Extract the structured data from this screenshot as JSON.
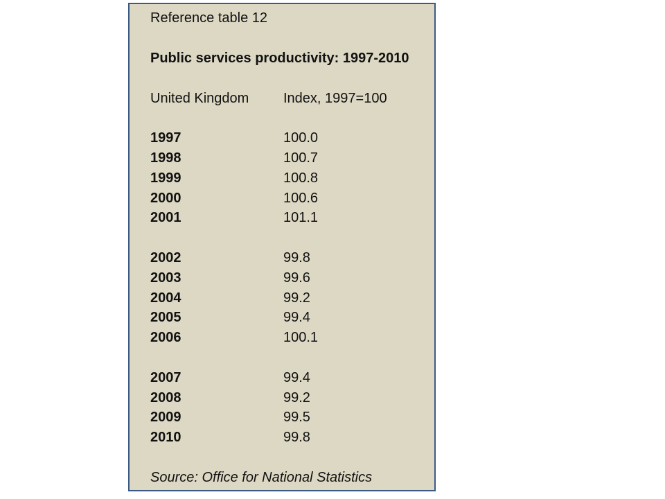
{
  "table": {
    "reference": "Reference table 12",
    "title": "Public services productivity: 1997-2010",
    "region": "United Kingdom",
    "index_label": "Index, 1997=100",
    "rows": [
      {
        "year": "1997",
        "value": "100.0"
      },
      {
        "year": "1998",
        "value": "100.7"
      },
      {
        "year": "1999",
        "value": "100.8"
      },
      {
        "year": "2000",
        "value": "100.6"
      },
      {
        "year": "2001",
        "value": "101.1"
      },
      {
        "year": "2002",
        "value": "99.8"
      },
      {
        "year": "2003",
        "value": "99.6"
      },
      {
        "year": "2004",
        "value": "99.2"
      },
      {
        "year": "2005",
        "value": "99.4"
      },
      {
        "year": "2006",
        "value": "100.1"
      },
      {
        "year": "2007",
        "value": "99.4"
      },
      {
        "year": "2008",
        "value": "99.2"
      },
      {
        "year": "2009",
        "value": "99.5"
      },
      {
        "year": "2010",
        "value": "99.8"
      }
    ],
    "source": "Source: Office for National Statistics"
  },
  "colors": {
    "panel_background": "#ddd8c4",
    "panel_border": "#3a5a86"
  }
}
